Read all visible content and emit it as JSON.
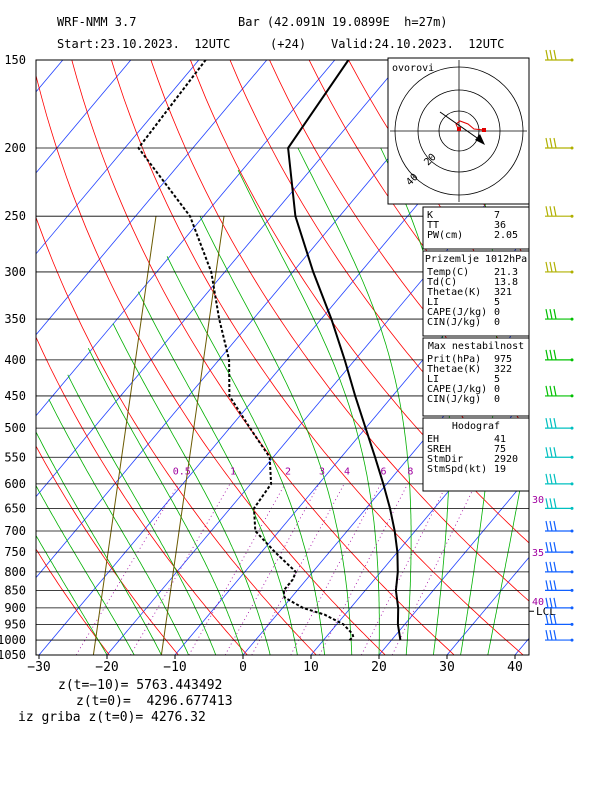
{
  "header": {
    "model": "WRF-NMM 3.7",
    "station": "Bar (42.091N 19.0899E  h=27m)",
    "start": "Start:23.10.2023.  12UTC",
    "lead": "(+24)",
    "valid": "Valid:24.10.2023.  12UTC"
  },
  "footer": {
    "line1": "z(t=−10)= 5763.443492",
    "line2": "z(t=0)=  4296.677413",
    "line3": "iz griba z(t=0)= 4276.32"
  },
  "hodograph": {
    "title": "ovorovi",
    "ring_labels": [
      "20",
      "40"
    ]
  },
  "panels": [
    {
      "rows": [
        [
          "K",
          "7"
        ],
        [
          "TT",
          "36"
        ],
        [
          "PW(cm)",
          "2.05"
        ]
      ]
    },
    {
      "title": "Prizemlje 1012hPa",
      "rows": [
        [
          "Temp(C)",
          "21.3"
        ],
        [
          "Td(C)",
          "13.8"
        ],
        [
          "Thetae(K)",
          "321"
        ],
        [
          "LI",
          "5"
        ],
        [
          "CAPE(J/kg)",
          "0"
        ],
        [
          "CIN(J/kg)",
          "0"
        ]
      ]
    },
    {
      "title": "Max nestabilnost",
      "rows": [
        [
          "Prit(hPa)",
          "975"
        ],
        [
          "Thetae(K)",
          "322"
        ],
        [
          "LI",
          "5"
        ],
        [
          "CAPE(J/kg)",
          "0"
        ],
        [
          "CIN(J/kg)",
          "0"
        ]
      ]
    },
    {
      "title": "Hodograf",
      "rows": [
        [
          "EH",
          "41"
        ],
        [
          "SREH",
          "75"
        ],
        [
          "StmDir",
          "2920"
        ],
        [
          "StmSpd(kt)",
          "19"
        ]
      ]
    }
  ],
  "colors": {
    "isobar": "#000000",
    "isotherm": "#2040ff",
    "dry_adiabat": "#ff0000",
    "moist_adiabat": "#00b000",
    "mixing_ratio": "#a000a0",
    "theta_e": "#6b5a00",
    "wind_barb": "#b0b000"
  },
  "chart_data": {
    "type": "skew-t",
    "pressure_levels": [
      "150",
      "200",
      "250",
      "300",
      "350",
      "400",
      "450",
      "500",
      "550",
      "600",
      "650",
      "700",
      "750",
      "800",
      "850",
      "900",
      "950",
      "1000",
      "1050"
    ],
    "temperature_ticks": [
      "−30",
      "−20",
      "−10",
      "0",
      "10",
      "20",
      "30",
      "40"
    ],
    "mixing_ratio_labels": [
      "0.5",
      "1",
      "2",
      "3",
      "4",
      "6",
      "8"
    ],
    "height_ticks": [
      "30",
      "35",
      "40"
    ],
    "lcl_label": "LCL",
    "temperature_profile": [
      {
        "p": 1000,
        "t": 21.3
      },
      {
        "p": 950,
        "t": 19.0
      },
      {
        "p": 900,
        "t": 17.0
      },
      {
        "p": 850,
        "t": 14.5
      },
      {
        "p": 800,
        "t": 12.5
      },
      {
        "p": 750,
        "t": 10.0
      },
      {
        "p": 700,
        "t": 7.0
      },
      {
        "p": 650,
        "t": 3.5
      },
      {
        "p": 600,
        "t": -0.5
      },
      {
        "p": 550,
        "t": -5.0
      },
      {
        "p": 500,
        "t": -10.0
      },
      {
        "p": 450,
        "t": -15.5
      },
      {
        "p": 400,
        "t": -21.5
      },
      {
        "p": 350,
        "t": -28.5
      },
      {
        "p": 300,
        "t": -37.0
      },
      {
        "p": 250,
        "t": -46.5
      },
      {
        "p": 200,
        "t": -56.0
      },
      {
        "p": 150,
        "t": -58.0
      }
    ],
    "dewpoint_profile": [
      {
        "p": 1000,
        "t": 13.8
      },
      {
        "p": 990,
        "t": 14.0
      },
      {
        "p": 980,
        "t": 13.5
      },
      {
        "p": 950,
        "t": 11.0
      },
      {
        "p": 920,
        "t": 7.0
      },
      {
        "p": 900,
        "t": 3.0
      },
      {
        "p": 870,
        "t": -1.0
      },
      {
        "p": 850,
        "t": -2.0
      },
      {
        "p": 820,
        "t": -2.0
      },
      {
        "p": 800,
        "t": -2.5
      },
      {
        "p": 750,
        "t": -8.0
      },
      {
        "p": 700,
        "t": -13.5
      },
      {
        "p": 650,
        "t": -16.5
      },
      {
        "p": 600,
        "t": -17.0
      },
      {
        "p": 550,
        "t": -20.5
      },
      {
        "p": 500,
        "t": -27.0
      },
      {
        "p": 450,
        "t": -34.0
      },
      {
        "p": 400,
        "t": -38.5
      },
      {
        "p": 350,
        "t": -45.0
      },
      {
        "p": 300,
        "t": -52.0
      },
      {
        "p": 250,
        "t": -62.0
      },
      {
        "p": 200,
        "t": -78.0
      },
      {
        "p": 150,
        "t": -79.0
      }
    ],
    "wind_levels": [
      {
        "p": 150
      },
      {
        "p": 200
      },
      {
        "p": 250
      },
      {
        "p": 300
      },
      {
        "p": 350
      },
      {
        "p": 400
      },
      {
        "p": 450
      },
      {
        "p": 500
      },
      {
        "p": 550
      },
      {
        "p": 600
      },
      {
        "p": 650
      },
      {
        "p": 700
      },
      {
        "p": 750
      },
      {
        "p": 800
      },
      {
        "p": 850
      },
      {
        "p": 900
      },
      {
        "p": 950
      },
      {
        "p": 1000
      }
    ],
    "xlim": [
      -30,
      40
    ],
    "ylim": [
      1050,
      150
    ],
    "y_scale": "log"
  }
}
